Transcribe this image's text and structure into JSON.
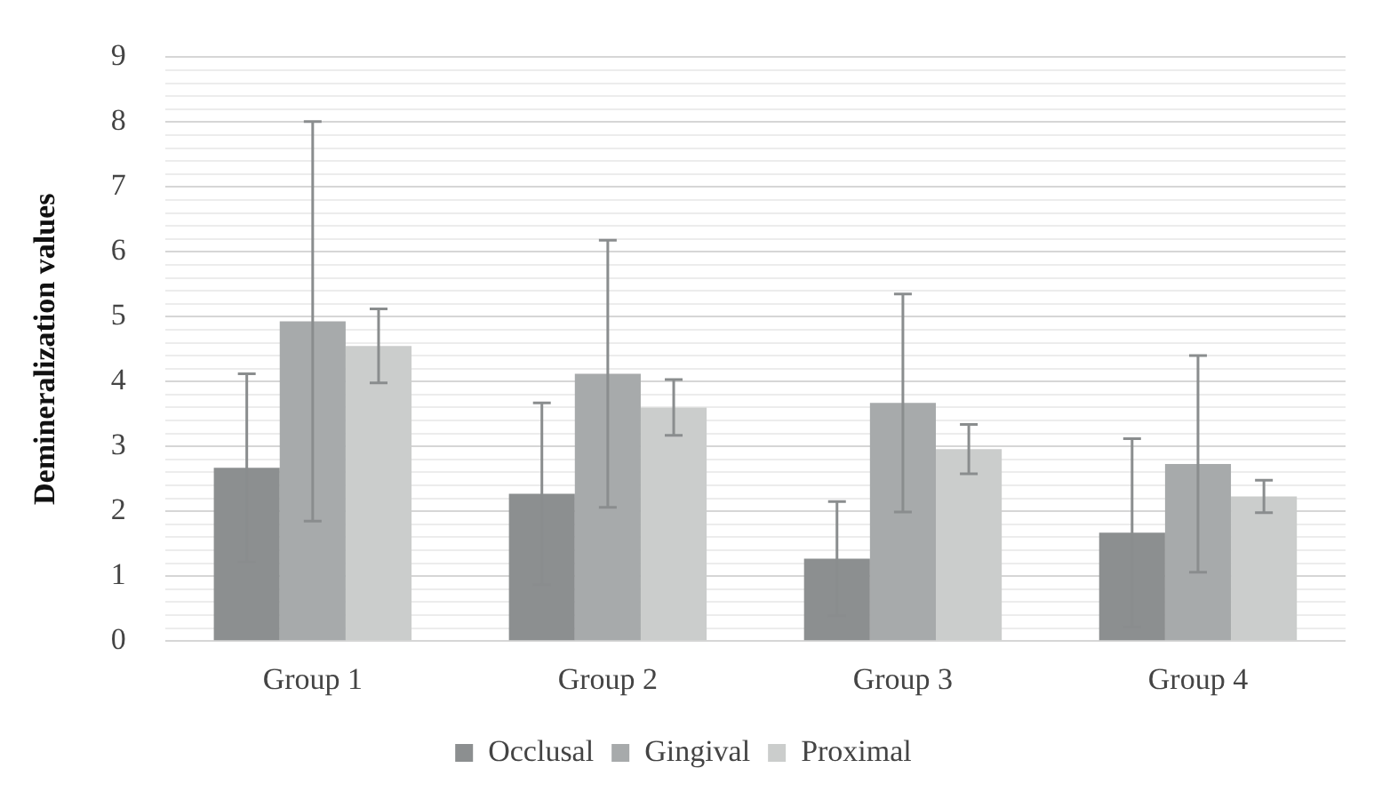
{
  "chart_data": {
    "type": "bar",
    "ylabel": "Demineralization values",
    "categories": [
      "Group 1",
      "Group 2",
      "Group 3",
      "Group 4"
    ],
    "series": [
      {
        "name": "Occlusal",
        "color": "#8c8f90",
        "values": [
          2.67,
          2.27,
          1.27,
          1.67
        ],
        "errors": [
          1.45,
          1.4,
          0.88,
          1.45
        ]
      },
      {
        "name": "Gingival",
        "color": "#a7aaab",
        "values": [
          4.93,
          4.12,
          3.67,
          2.73
        ],
        "errors": [
          3.08,
          2.06,
          1.68,
          1.67
        ]
      },
      {
        "name": "Proximal",
        "color": "#cbcdcc",
        "values": [
          4.55,
          3.6,
          2.96,
          2.23
        ],
        "errors": [
          0.57,
          0.43,
          0.38,
          0.25
        ]
      }
    ],
    "ylim": [
      0,
      9
    ],
    "yticks": [
      0,
      {
        "value": 0.2,
        "label": null
      },
      {
        "value": 0.4,
        "label": null
      },
      {
        "value": 0.6,
        "label": null
      },
      {
        "value": 0.8,
        "label": null
      },
      1,
      {
        "value": 1.2,
        "label": null
      },
      {
        "value": 1.4,
        "label": null
      },
      {
        "value": 1.6,
        "label": null
      },
      {
        "value": 1.8,
        "label": null
      },
      2,
      {
        "value": 2.2,
        "label": null
      },
      {
        "value": 2.4,
        "label": null
      },
      {
        "value": 2.6,
        "label": null
      },
      {
        "value": 2.8,
        "label": null
      },
      3,
      {
        "value": 3.2,
        "label": null
      },
      {
        "value": 3.4,
        "label": null
      },
      {
        "value": 3.6,
        "label": null
      },
      {
        "value": 3.8,
        "label": null
      },
      4,
      {
        "value": 4.2,
        "label": null
      },
      {
        "value": 4.4,
        "label": null
      },
      {
        "value": 4.6,
        "label": null
      },
      {
        "value": 4.8,
        "label": null
      },
      5,
      {
        "value": 5.2,
        "label": null
      },
      {
        "value": 5.4,
        "label": null
      },
      {
        "value": 5.6,
        "label": null
      },
      {
        "value": 5.8,
        "label": null
      },
      6,
      {
        "value": 6.2,
        "label": null
      },
      {
        "value": 6.4,
        "label": null
      },
      {
        "value": 6.6,
        "label": null
      },
      {
        "value": 6.8,
        "label": null
      },
      7,
      {
        "value": 7.2,
        "label": null
      },
      {
        "value": 7.4,
        "label": null
      },
      {
        "value": 7.6,
        "label": null
      },
      {
        "value": 7.8,
        "label": null
      },
      8,
      {
        "value": 8.2,
        "label": null
      },
      {
        "value": 8.4,
        "label": null
      },
      {
        "value": 8.6,
        "label": null
      },
      {
        "value": 8.8,
        "label": null
      },
      9
    ],
    "grid": "y",
    "legend": "bottom"
  }
}
